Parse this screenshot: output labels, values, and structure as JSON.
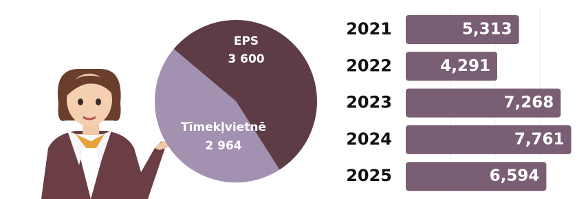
{
  "chart_data": [
    {
      "type": "pie",
      "categories": [
        "EPS",
        "Tīmekļvietnē"
      ],
      "values": [
        3600,
        2964
      ],
      "value_labels": [
        "3 600",
        "2 964"
      ],
      "colors": [
        "#5d3c46",
        "#a291b0"
      ]
    },
    {
      "type": "bar",
      "orientation": "horizontal",
      "categories": [
        "2021",
        "2022",
        "2023",
        "2024",
        "2025"
      ],
      "values": [
        5313,
        4291,
        7268,
        7761,
        6594
      ],
      "value_labels": [
        "5,313",
        "4,291",
        "7,268",
        "7,761",
        "6,594"
      ],
      "color": "#7a5f74",
      "xlim": [
        0,
        8000
      ]
    }
  ]
}
